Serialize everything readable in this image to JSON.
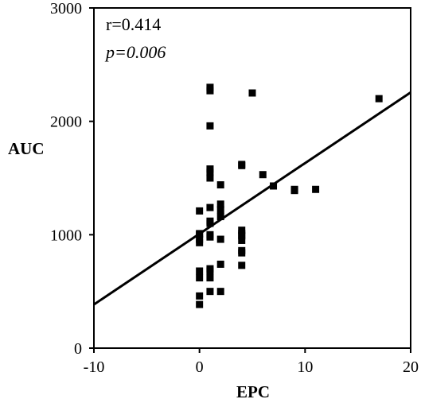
{
  "chart_data": {
    "type": "scatter",
    "title": "",
    "xlabel": "EPC",
    "ylabel": "AUC",
    "xlim": [
      -10,
      20
    ],
    "ylim": [
      0,
      3000
    ],
    "x_ticks": [
      "-10",
      "0",
      "10",
      "20"
    ],
    "y_ticks": [
      "0",
      "1000",
      "2000",
      "3000"
    ],
    "grid": false,
    "annotations": {
      "r": "r=0.414",
      "p": "p=0.006"
    },
    "regression_line": {
      "x": [
        -10,
        20
      ],
      "y": [
        385,
        2255
      ]
    },
    "series": [
      {
        "marker": "square",
        "color": "#000000",
        "points": [
          [
            0,
            385
          ],
          [
            0,
            460
          ],
          [
            0,
            620
          ],
          [
            0,
            680
          ],
          [
            0,
            930
          ],
          [
            0,
            960
          ],
          [
            0,
            1000
          ],
          [
            0,
            1010
          ],
          [
            0,
            1210
          ],
          [
            1,
            500
          ],
          [
            1,
            620
          ],
          [
            1,
            680
          ],
          [
            1,
            700
          ],
          [
            1,
            980
          ],
          [
            1,
            1000
          ],
          [
            1,
            1100
          ],
          [
            1,
            1120
          ],
          [
            1,
            1240
          ],
          [
            1,
            1500
          ],
          [
            1,
            1550
          ],
          [
            1,
            1580
          ],
          [
            1,
            1960
          ],
          [
            1,
            2270
          ],
          [
            1,
            2300
          ],
          [
            2,
            500
          ],
          [
            2,
            740
          ],
          [
            2,
            960
          ],
          [
            2,
            1160
          ],
          [
            2,
            1220
          ],
          [
            2,
            1270
          ],
          [
            2,
            1440
          ],
          [
            4,
            730
          ],
          [
            4,
            840
          ],
          [
            4,
            860
          ],
          [
            4,
            950
          ],
          [
            4,
            990
          ],
          [
            4,
            1010
          ],
          [
            4,
            1040
          ],
          [
            4,
            1610
          ],
          [
            4,
            1620
          ],
          [
            5,
            2250
          ],
          [
            6,
            1530
          ],
          [
            7,
            1430
          ],
          [
            9,
            1390
          ],
          [
            9,
            1400
          ],
          [
            11,
            1400
          ],
          [
            17,
            2200
          ]
        ]
      }
    ]
  }
}
